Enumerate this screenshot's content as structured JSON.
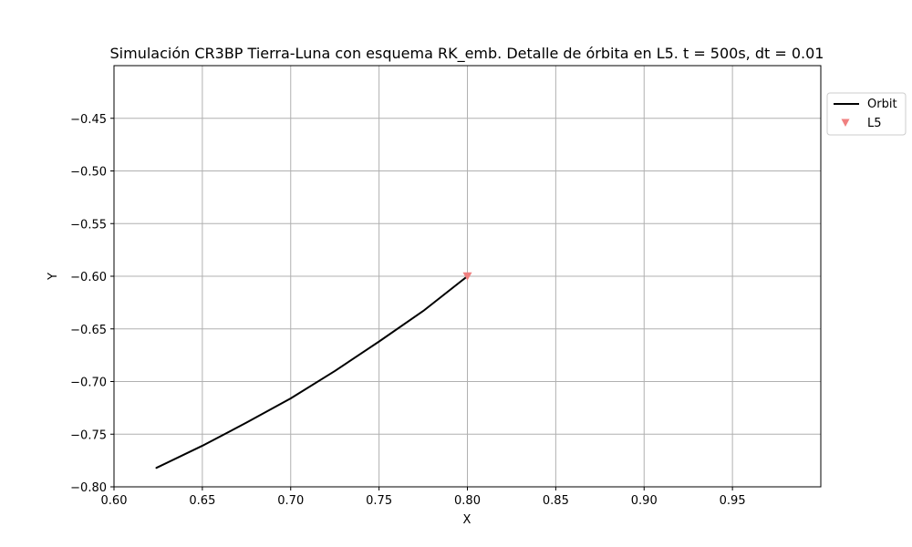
{
  "chart_data": {
    "type": "line",
    "title": "Simulación CR3BP Tierra-Luna con esquema RK_emb. Detalle de órbita en L5. t = 500s, dt = 0.01",
    "xlabel": "X",
    "ylabel": "Y",
    "xlim": [
      0.6,
      1.0
    ],
    "ylim": [
      -0.8,
      -0.4
    ],
    "xticks": [
      0.6,
      0.65,
      0.7,
      0.75,
      0.8,
      0.85,
      0.9,
      0.95
    ],
    "xtick_labels": [
      "0.60",
      "0.65",
      "0.70",
      "0.75",
      "0.80",
      "0.85",
      "0.90",
      "0.95"
    ],
    "yticks": [
      -0.8,
      -0.75,
      -0.7,
      -0.65,
      -0.6,
      -0.55,
      -0.5,
      -0.45
    ],
    "ytick_labels": [
      "−0.80",
      "−0.75",
      "−0.70",
      "−0.65",
      "−0.60",
      "−0.55",
      "−0.50",
      "−0.45"
    ],
    "grid": true,
    "legend_position": "upper right, outside plot area",
    "series": [
      {
        "name": "Orbit",
        "kind": "line",
        "color": "#000000",
        "x": [
          0.624,
          0.65,
          0.675,
          0.7,
          0.725,
          0.75,
          0.775,
          0.8
        ],
        "y": [
          -0.782,
          -0.761,
          -0.739,
          -0.716,
          -0.69,
          -0.662,
          -0.633,
          -0.6
        ]
      },
      {
        "name": "L5",
        "kind": "marker",
        "marker": "triangle-down",
        "color": "#f08080",
        "x": [
          0.8
        ],
        "y": [
          -0.6
        ]
      }
    ]
  }
}
